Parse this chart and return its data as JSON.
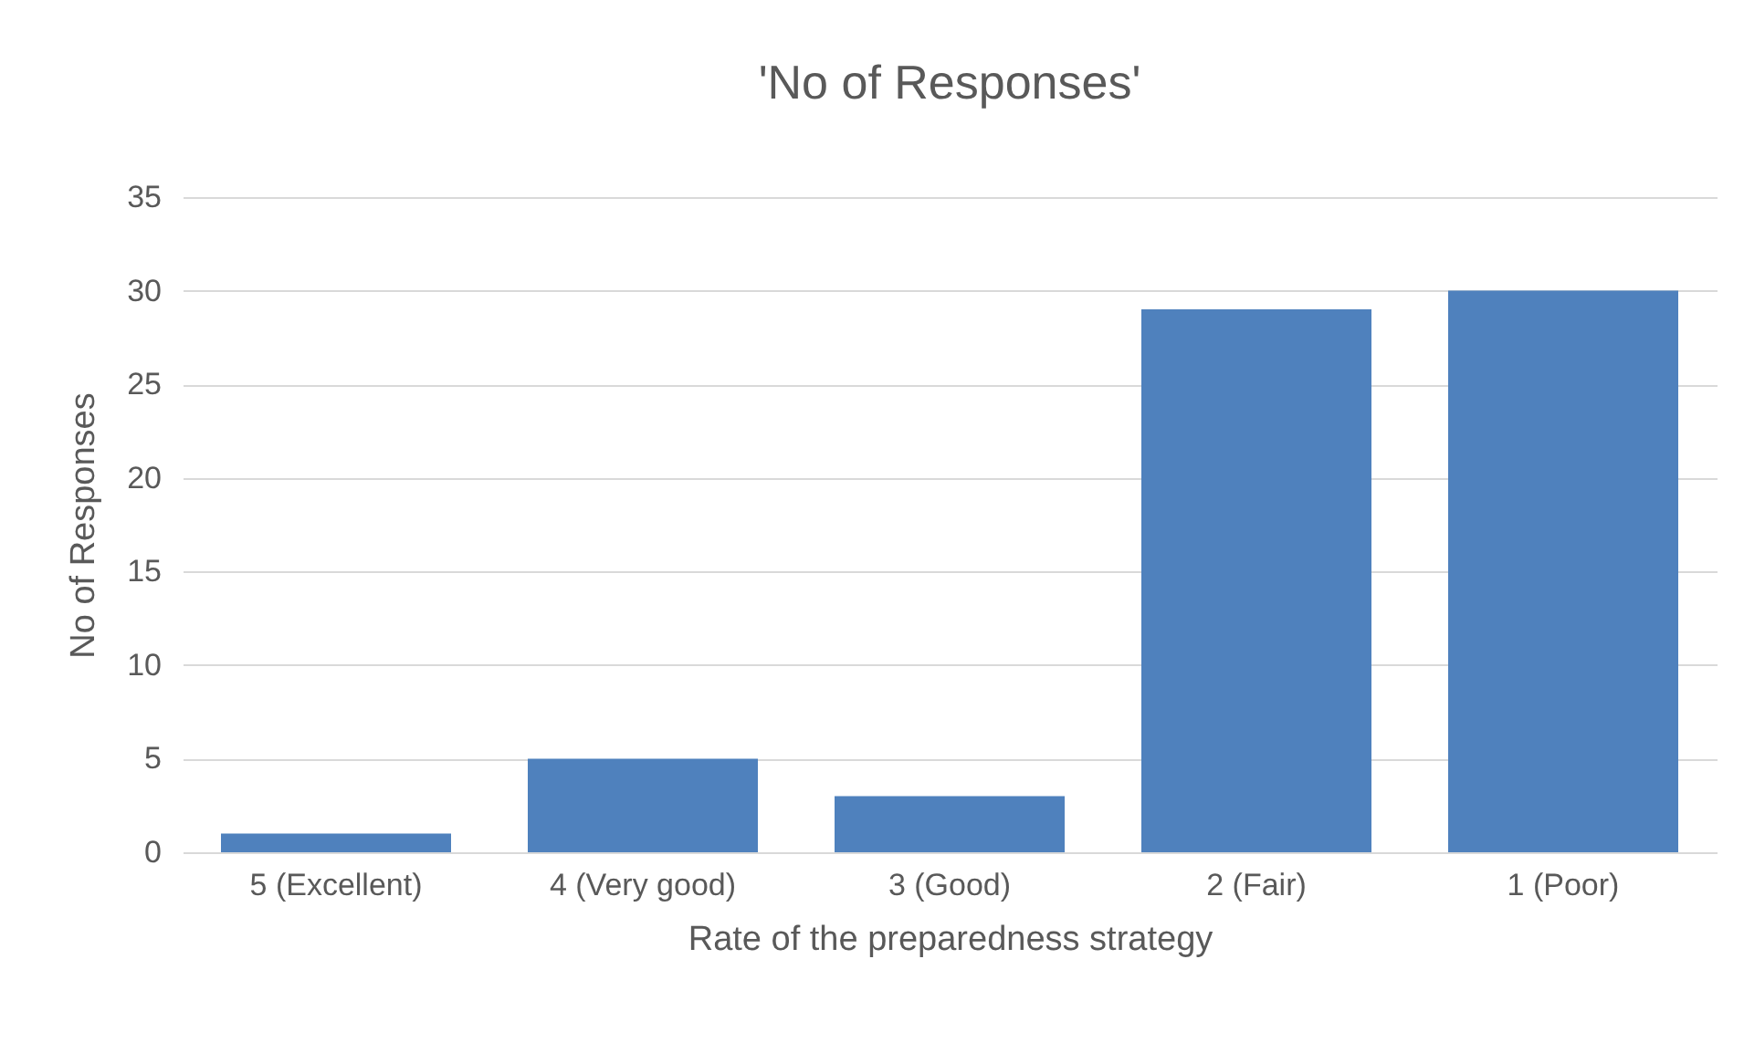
{
  "chart_data": {
    "type": "bar",
    "title": "'No of Responses'",
    "xlabel": "Rate of the preparedness strategy",
    "ylabel": "No of Responses",
    "categories": [
      "5 (Excellent)",
      "4 (Very good)",
      "3 (Good)",
      "2 (Fair)",
      "1 (Poor)"
    ],
    "values": [
      1,
      5,
      3,
      29,
      30
    ],
    "color": "#4f81bd",
    "ylim": [
      0,
      35
    ],
    "yticks": [
      0,
      5,
      10,
      15,
      20,
      25,
      30,
      35
    ],
    "grid": "y"
  }
}
